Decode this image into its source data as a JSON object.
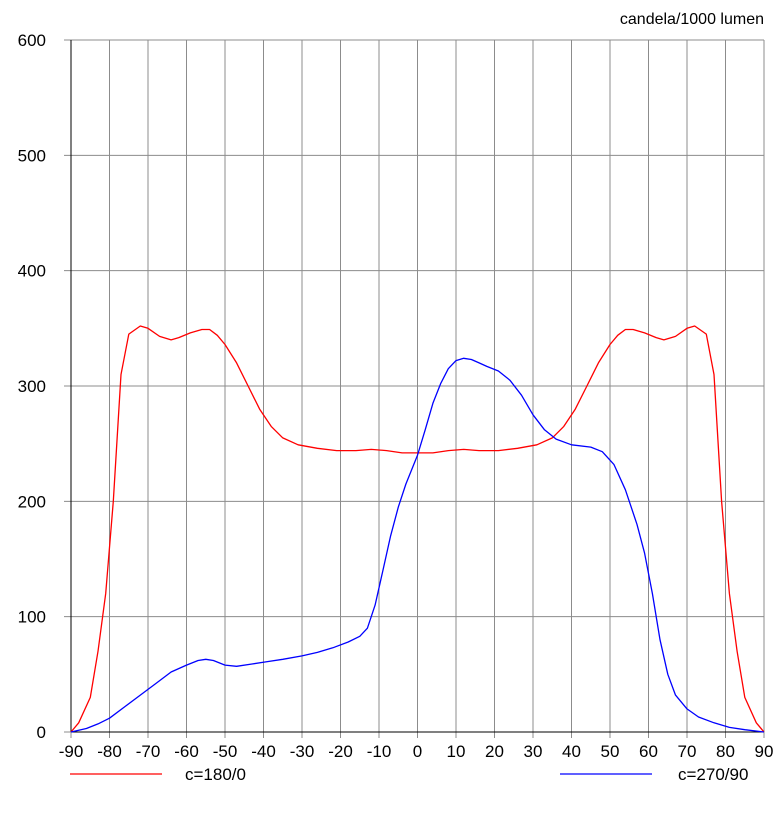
{
  "colors": {
    "grid": "#8c8c8c",
    "axis": "#000000",
    "series_0": "#ff0000",
    "series_1": "#0000ff"
  },
  "chart_data": {
    "type": "line",
    "ylabel": "candela/1000 lumen",
    "xlim": [
      -90,
      90
    ],
    "ylim": [
      0,
      600
    ],
    "grid": true,
    "legend_position": "bottom",
    "x_ticks": [
      -90,
      -80,
      -70,
      -60,
      -50,
      -40,
      -30,
      -20,
      -10,
      0,
      10,
      20,
      30,
      40,
      50,
      60,
      70,
      80,
      90
    ],
    "y_ticks": [
      0,
      100,
      200,
      300,
      400,
      500,
      600
    ],
    "series": [
      {
        "name": "c=180/0",
        "color": "#ff0000",
        "points": [
          [
            -90,
            0
          ],
          [
            -88,
            8
          ],
          [
            -85,
            30
          ],
          [
            -83,
            70
          ],
          [
            -81,
            120
          ],
          [
            -79,
            200
          ],
          [
            -77,
            310
          ],
          [
            -75,
            345
          ],
          [
            -72,
            352
          ],
          [
            -70,
            350
          ],
          [
            -67,
            343
          ],
          [
            -64,
            340
          ],
          [
            -62,
            342
          ],
          [
            -59,
            346
          ],
          [
            -56,
            349
          ],
          [
            -54,
            349
          ],
          [
            -52,
            344
          ],
          [
            -50,
            336
          ],
          [
            -47,
            320
          ],
          [
            -44,
            300
          ],
          [
            -41,
            280
          ],
          [
            -38,
            265
          ],
          [
            -35,
            255
          ],
          [
            -31,
            249
          ],
          [
            -26,
            246
          ],
          [
            -21,
            244
          ],
          [
            -16,
            244
          ],
          [
            -12,
            245
          ],
          [
            -8,
            244
          ],
          [
            -4,
            242
          ],
          [
            0,
            242
          ],
          [
            4,
            242
          ],
          [
            8,
            244
          ],
          [
            12,
            245
          ],
          [
            16,
            244
          ],
          [
            21,
            244
          ],
          [
            26,
            246
          ],
          [
            31,
            249
          ],
          [
            35,
            255
          ],
          [
            38,
            265
          ],
          [
            41,
            280
          ],
          [
            44,
            300
          ],
          [
            47,
            320
          ],
          [
            50,
            336
          ],
          [
            52,
            344
          ],
          [
            54,
            349
          ],
          [
            56,
            349
          ],
          [
            59,
            346
          ],
          [
            62,
            342
          ],
          [
            64,
            340
          ],
          [
            67,
            343
          ],
          [
            70,
            350
          ],
          [
            72,
            352
          ],
          [
            75,
            345
          ],
          [
            77,
            310
          ],
          [
            79,
            200
          ],
          [
            81,
            120
          ],
          [
            83,
            70
          ],
          [
            85,
            30
          ],
          [
            88,
            8
          ],
          [
            90,
            0
          ]
        ]
      },
      {
        "name": "c=270/90",
        "color": "#0000ff",
        "points": [
          [
            -90,
            0
          ],
          [
            -86,
            3
          ],
          [
            -83,
            7
          ],
          [
            -80,
            12
          ],
          [
            -76,
            22
          ],
          [
            -72,
            32
          ],
          [
            -68,
            42
          ],
          [
            -64,
            52
          ],
          [
            -60,
            58
          ],
          [
            -57,
            62
          ],
          [
            -55,
            63
          ],
          [
            -53,
            62
          ],
          [
            -50,
            58
          ],
          [
            -47,
            57
          ],
          [
            -43,
            59
          ],
          [
            -39,
            61
          ],
          [
            -35,
            63
          ],
          [
            -30,
            66
          ],
          [
            -26,
            69
          ],
          [
            -22,
            73
          ],
          [
            -18,
            78
          ],
          [
            -15,
            83
          ],
          [
            -13,
            90
          ],
          [
            -11,
            110
          ],
          [
            -9,
            140
          ],
          [
            -7,
            170
          ],
          [
            -5,
            195
          ],
          [
            -3,
            215
          ],
          [
            0,
            240
          ],
          [
            2,
            262
          ],
          [
            4,
            285
          ],
          [
            6,
            302
          ],
          [
            8,
            315
          ],
          [
            10,
            322
          ],
          [
            12,
            324
          ],
          [
            14,
            323
          ],
          [
            16,
            320
          ],
          [
            18,
            317
          ],
          [
            21,
            313
          ],
          [
            24,
            305
          ],
          [
            27,
            292
          ],
          [
            30,
            275
          ],
          [
            33,
            262
          ],
          [
            36,
            254
          ],
          [
            40,
            249
          ],
          [
            45,
            247
          ],
          [
            48,
            243
          ],
          [
            51,
            232
          ],
          [
            54,
            210
          ],
          [
            57,
            180
          ],
          [
            59,
            155
          ],
          [
            61,
            120
          ],
          [
            63,
            80
          ],
          [
            65,
            50
          ],
          [
            67,
            32
          ],
          [
            70,
            20
          ],
          [
            73,
            13
          ],
          [
            77,
            8
          ],
          [
            81,
            4
          ],
          [
            85,
            2
          ],
          [
            90,
            0
          ]
        ]
      }
    ]
  }
}
